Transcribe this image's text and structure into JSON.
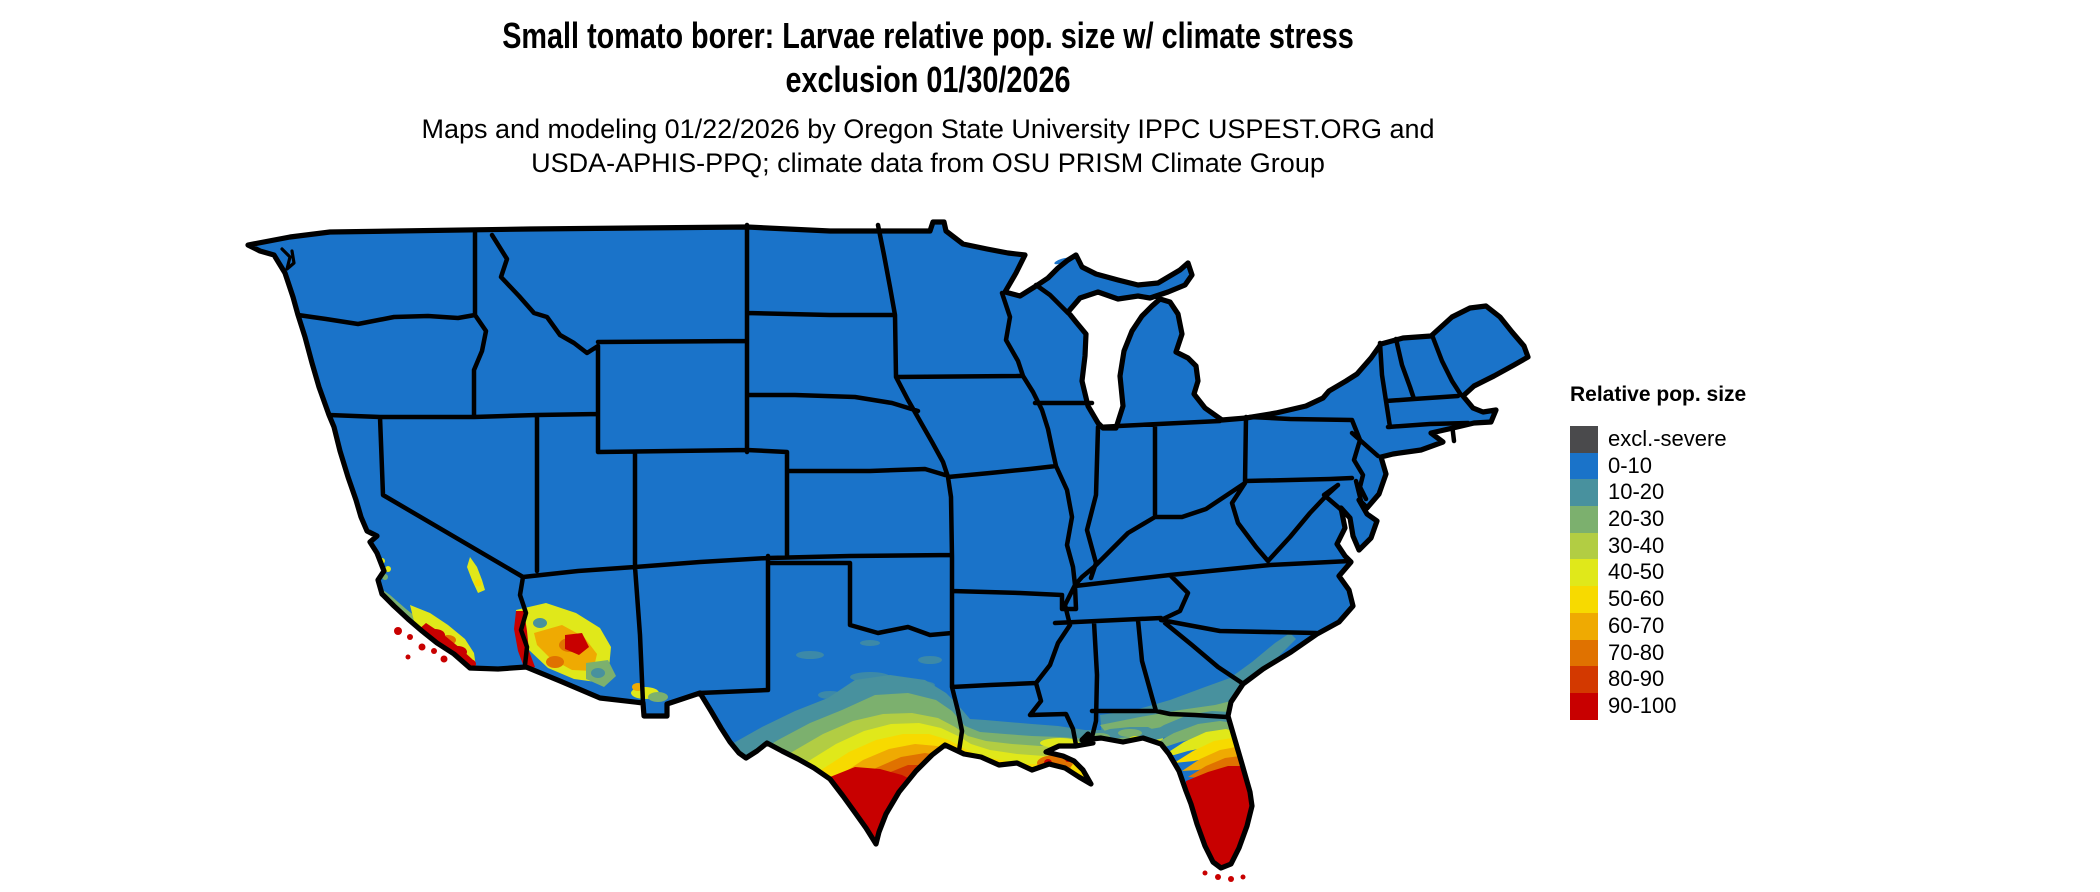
{
  "title": {
    "line1": "Small tomato borer: Larvae relative pop. size w/ climate stress",
    "line2": "exclusion 01/30/2026"
  },
  "subtitle": {
    "line1": "Maps and modeling 01/22/2026 by Oregon State University IPPC USPEST.ORG and",
    "line2": "USDA-APHIS-PPQ; climate data from OSU PRISM Climate Group"
  },
  "legend": {
    "title": "Relative pop. size",
    "items": [
      {
        "label": "excl.-severe",
        "color": "#4a4a4c"
      },
      {
        "label": "0-10",
        "color": "#1a73c9"
      },
      {
        "label": "10-20",
        "color": "#48919e"
      },
      {
        "label": "20-30",
        "color": "#7cb06e"
      },
      {
        "label": "30-40",
        "color": "#b2cd43"
      },
      {
        "label": "40-50",
        "color": "#e0e81a"
      },
      {
        "label": "50-60",
        "color": "#f7da00"
      },
      {
        "label": "60-70",
        "color": "#efaa02"
      },
      {
        "label": "70-80",
        "color": "#e07200"
      },
      {
        "label": "80-90",
        "color": "#d33900"
      },
      {
        "label": "90-100",
        "color": "#c80000"
      }
    ]
  },
  "map": {
    "background_color": "#ffffff",
    "border_color": "#000000",
    "palette": {
      "excl": "#4a4a4c",
      "b0": "#1a73c9",
      "b10": "#48919e",
      "b20": "#7cb06e",
      "b30": "#b2cd43",
      "b40": "#e0e81a",
      "b50": "#f7da00",
      "b60": "#efaa02",
      "b70": "#e07200",
      "b80": "#d33900",
      "b90": "#c80000"
    },
    "hotspots": [
      {
        "region": "southern-california-coast",
        "range": "40-100"
      },
      {
        "region": "lower-colorado-river-yuma",
        "range": "80-100"
      },
      {
        "region": "southern-arizona",
        "range": "30-100"
      },
      {
        "region": "south-texas-rio-grande-valley",
        "range": "90-100"
      },
      {
        "region": "texas-gulf-coast",
        "range": "10-90"
      },
      {
        "region": "louisiana-gulf-coast",
        "range": "30-80"
      },
      {
        "region": "mississippi-alabama-coast",
        "range": "20-50"
      },
      {
        "region": "north-florida-panhandle",
        "range": "10-50"
      },
      {
        "region": "florida-peninsula",
        "range": "90-100"
      },
      {
        "region": "southeast-atlantic-coastal-plain",
        "range": "10-30"
      },
      {
        "region": "rest-of-conus",
        "range": "0-10"
      }
    ]
  }
}
